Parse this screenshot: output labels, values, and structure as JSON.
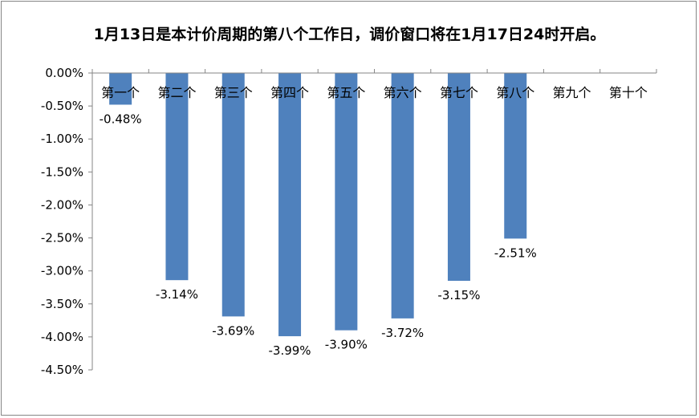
{
  "chart_data": {
    "type": "bar",
    "title": "1月13日是本计价周期的第八个工作日，调价窗口将在1月17日24时开启。",
    "categories": [
      "第一个",
      "第二个",
      "第三个",
      "第四个",
      "第五个",
      "第六个",
      "第七个",
      "第八个",
      "第九个",
      "第十个"
    ],
    "values": [
      -0.48,
      -3.14,
      -3.69,
      -3.99,
      -3.9,
      -3.72,
      -3.15,
      -2.51,
      null,
      null
    ],
    "value_labels": [
      "-0.48%",
      "-3.14%",
      "-3.69%",
      "-3.99%",
      "-3.90%",
      "-3.72%",
      "-3.15%",
      "-2.51%",
      "",
      ""
    ],
    "ylim": [
      -4.5,
      0
    ],
    "yticks": [
      0,
      -0.5,
      -1,
      -1.5,
      -2,
      -2.5,
      -3,
      -3.5,
      -4,
      -4.5
    ],
    "ytick_labels": [
      "0.00%",
      "-0.50%",
      "-1.00%",
      "-1.50%",
      "-2.00%",
      "-2.50%",
      "-3.00%",
      "-3.50%",
      "-4.00%",
      "-4.50%"
    ],
    "xlabel": "",
    "ylabel": "",
    "grid": false,
    "legend": "none",
    "colors": {
      "bar": "#4F81BD",
      "axis": "#868686",
      "text": "#000000"
    }
  }
}
